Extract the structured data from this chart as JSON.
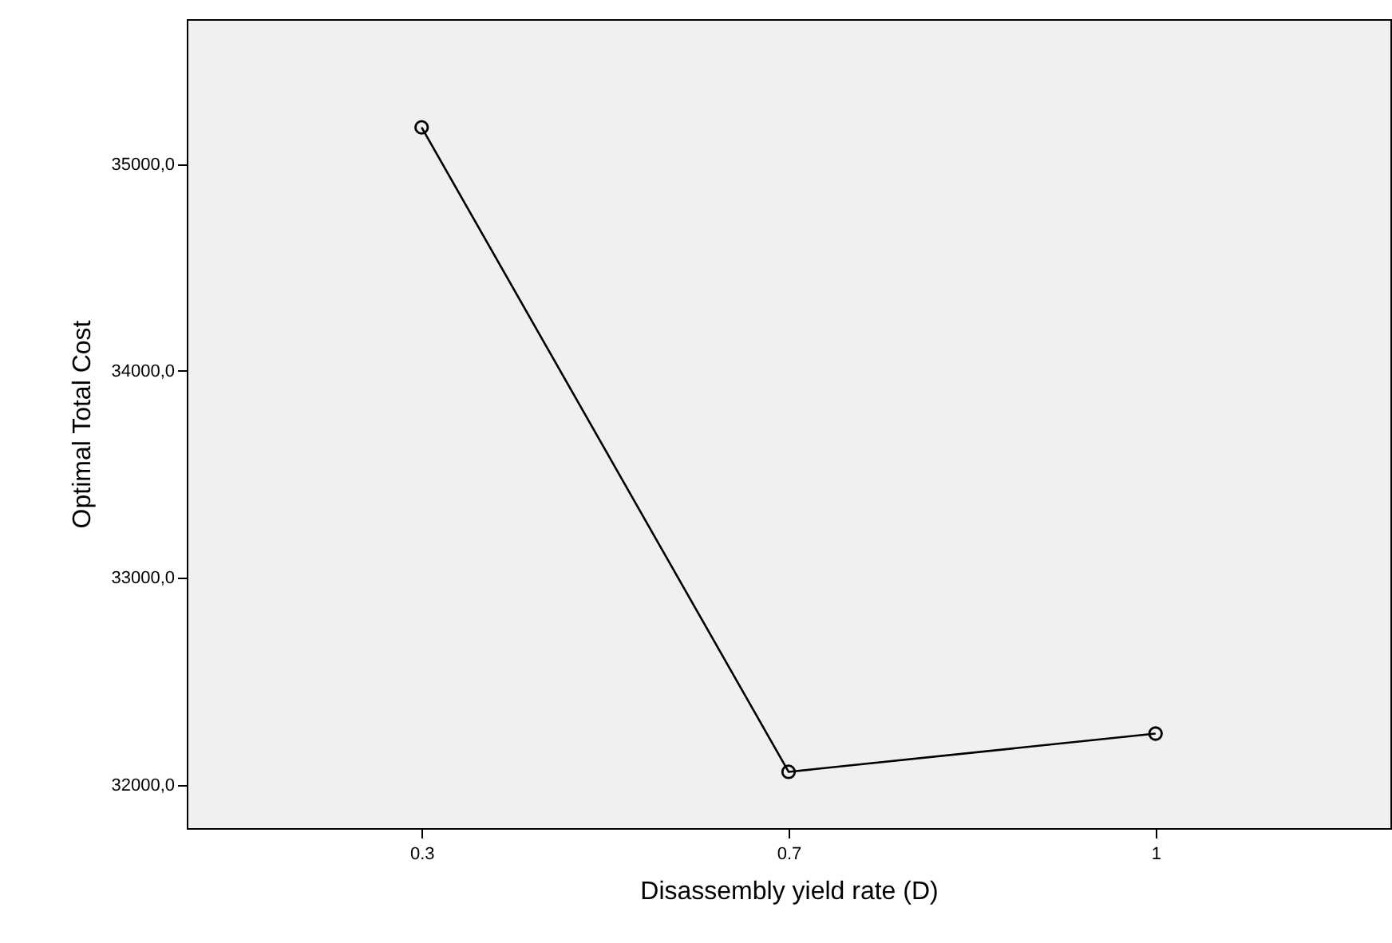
{
  "chart_data": {
    "type": "line",
    "xlabel": "Disassembly yield rate (D)",
    "ylabel": "Optimal Total Cost",
    "categories": [
      "0.3",
      "0.7",
      "1"
    ],
    "series": [
      {
        "color": "#000000",
        "values": [
          35177,
          32062,
          32247
        ]
      }
    ],
    "ylim": [
      31790,
      35700
    ],
    "yticks": [
      {
        "value": 32000,
        "label": "32000,0"
      },
      {
        "value": 33000,
        "label": "33000,0"
      },
      {
        "value": 34000,
        "label": "34000,0"
      },
      {
        "value": 35000,
        "label": "35000,0"
      }
    ],
    "grid": false,
    "marker": "circle",
    "line_style": "solid"
  }
}
